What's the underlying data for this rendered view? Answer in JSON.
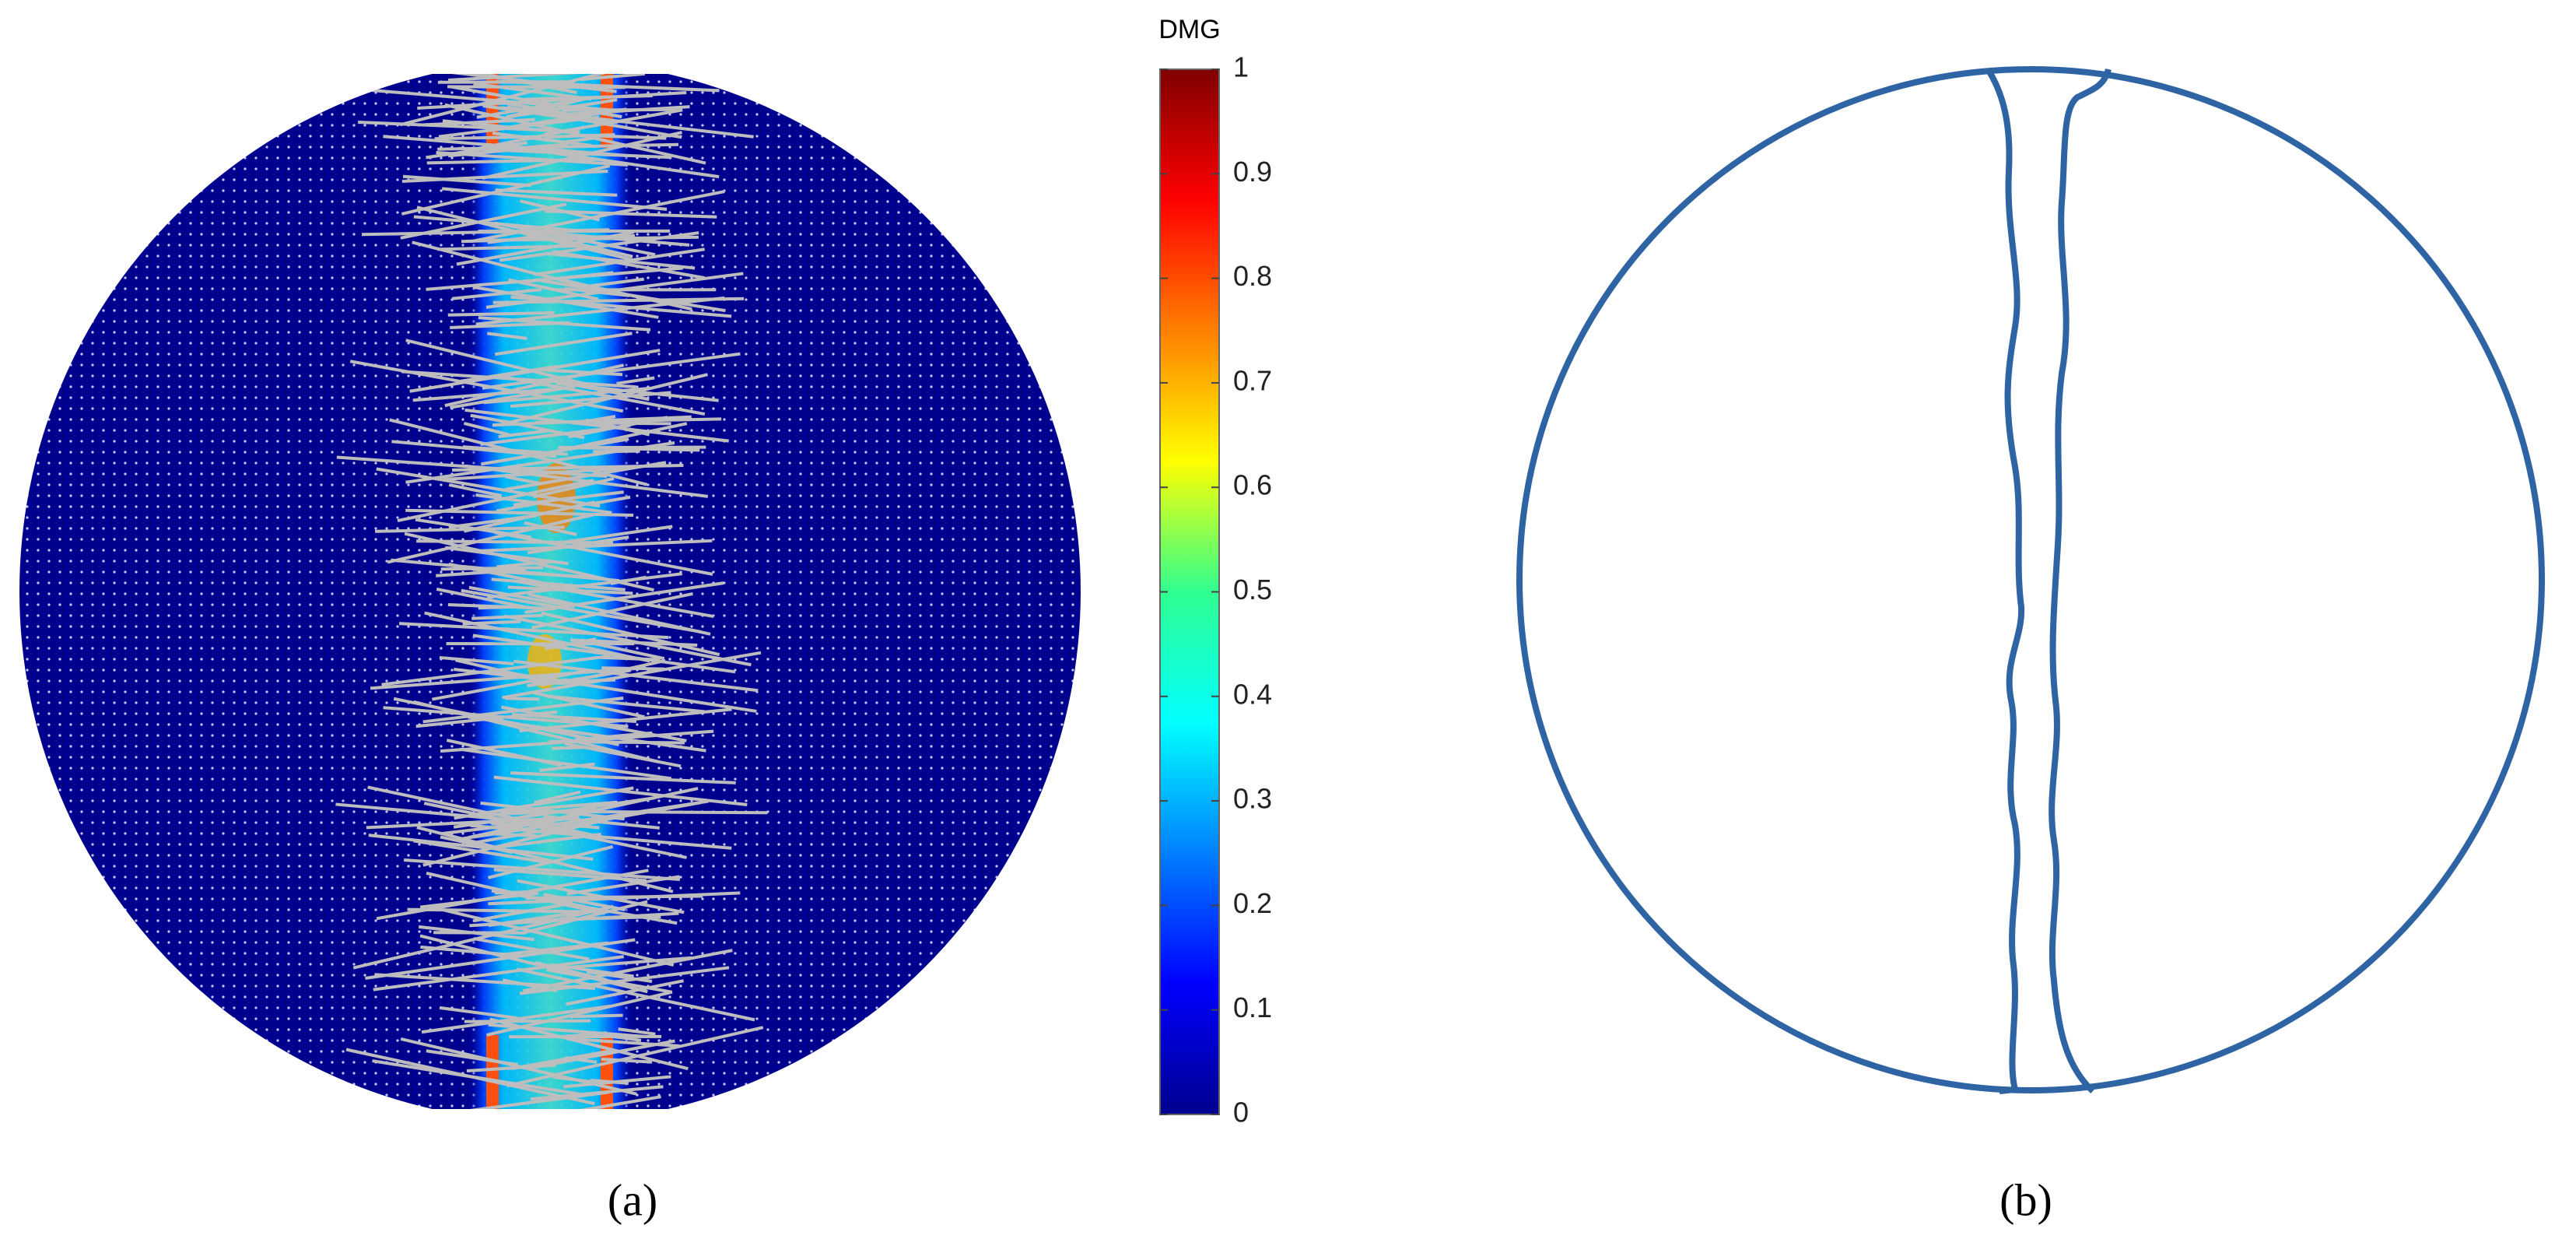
{
  "panel_a": {
    "colorbar": {
      "title": "DMG",
      "ticks": [
        0,
        0.1,
        0.2,
        0.3,
        0.4,
        0.5,
        0.6,
        0.7,
        0.8,
        0.9,
        1
      ],
      "range": [
        0,
        1
      ]
    },
    "caption": "(a)"
  },
  "panel_b": {
    "caption": "(b)"
  }
}
